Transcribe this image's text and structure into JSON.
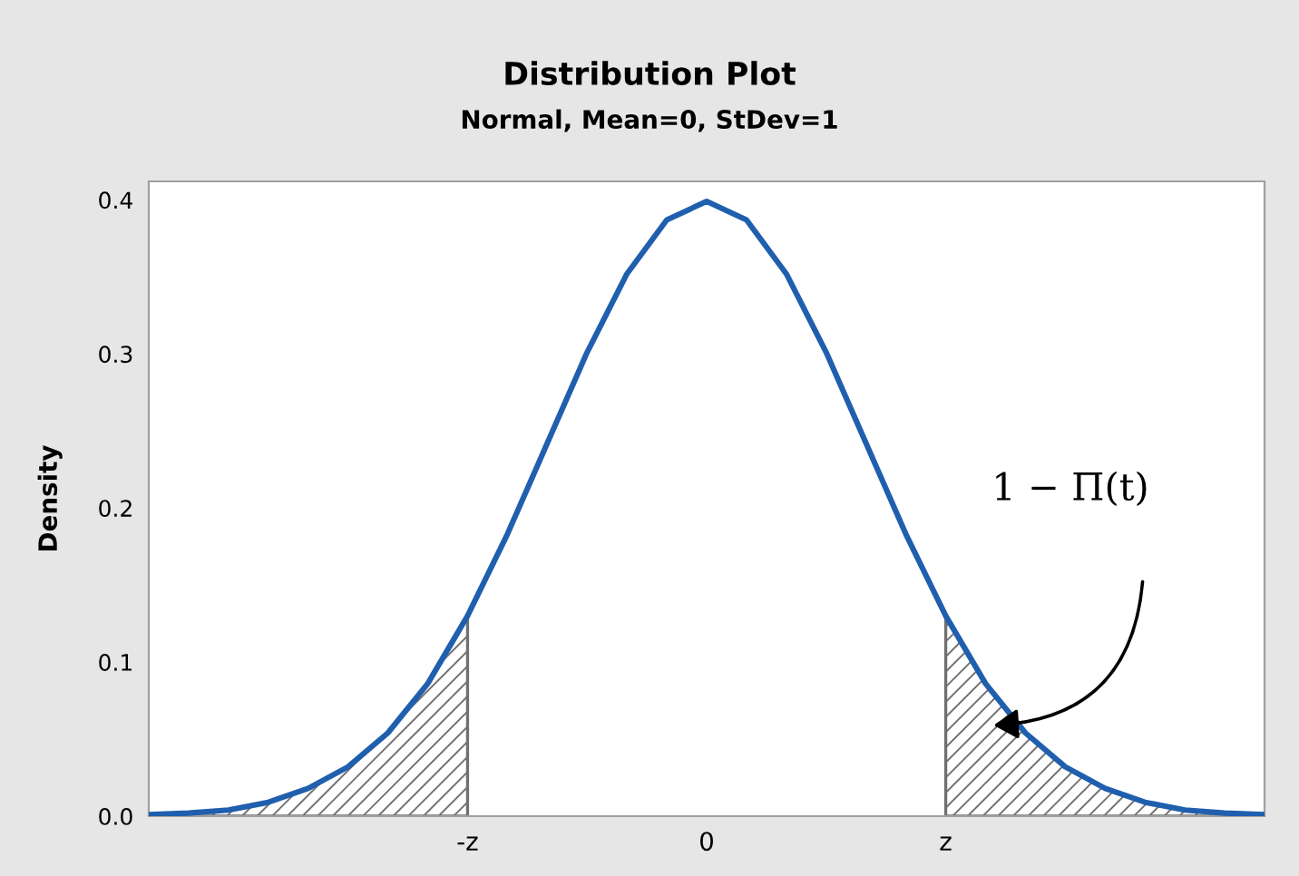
{
  "chart_data": {
    "type": "line",
    "title": "Distribution Plot",
    "subtitle": "Normal, Mean=0, StDev=1",
    "ylabel": "Density",
    "ylim": [
      0,
      0.412
    ],
    "yticks": [
      {
        "value": 0,
        "label": "0.0"
      },
      0.1,
      0.2,
      0.3,
      0.4
    ],
    "categories": [
      null,
      null,
      null,
      null,
      null,
      null,
      null,
      null,
      "-z",
      null,
      null,
      null,
      null,
      null,
      "0",
      null,
      null,
      null,
      null,
      null,
      "z",
      null,
      null,
      null,
      null,
      null,
      null,
      null,
      null
    ],
    "series": [
      {
        "color": "#1f5fae",
        "values": [
          0.001,
          0.002,
          0.004,
          0.009,
          0.018,
          0.032,
          0.054,
          0.086,
          0.13,
          0.183,
          0.242,
          0.301,
          0.352,
          0.387,
          0.399,
          0.387,
          0.352,
          0.301,
          0.242,
          0.183,
          0.13,
          0.086,
          0.054,
          0.032,
          0.018,
          0.009,
          0.004,
          0.002,
          0.001
        ]
      },
      {
        "type": "area",
        "color": "#707070",
        "values": [
          0.001,
          0.002,
          0.004,
          0.009,
          0.018,
          0.032,
          0.054,
          0.086,
          0.13,
          null,
          null,
          null,
          null,
          null,
          null,
          null,
          null,
          null,
          null,
          null,
          null,
          null,
          null,
          null,
          null,
          null,
          null,
          null,
          null
        ]
      },
      {
        "type": "area",
        "color": "#707070",
        "values": [
          null,
          null,
          null,
          null,
          null,
          null,
          null,
          null,
          null,
          null,
          null,
          null,
          null,
          null,
          null,
          null,
          null,
          null,
          null,
          null,
          0.13,
          0.086,
          0.054,
          0.032,
          0.018,
          0.009,
          0.004,
          0.002,
          0.001
        ]
      }
    ],
    "annotations": [
      "1 − Π(t)"
    ]
  }
}
